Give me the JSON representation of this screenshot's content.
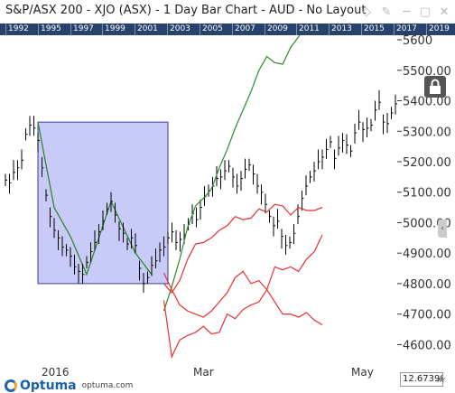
{
  "window": {
    "title": "S&P/ASX 200 - XJO (ASX) - 1 Day Bar Chart - AUD - No Layout",
    "icons": [
      "diamond-icon",
      "pin-icon",
      "minimize-icon",
      "maximize-icon",
      "close-icon"
    ]
  },
  "timeline": {
    "years": [
      "1992",
      "1995",
      "1997",
      "1999",
      "2001",
      "2003",
      "2005",
      "2007",
      "2009",
      "2011",
      "2013",
      "2015",
      "2017",
      "2019"
    ]
  },
  "y_axis": {
    "labels": [
      "5600",
      "5500.00",
      "5400.00",
      "5300.00",
      "5200.00",
      "5100.00",
      "5000.00",
      "4900.00",
      "4800.00",
      "4700.00",
      "4600.00"
    ]
  },
  "x_axis": {
    "labels": [
      "2016",
      "Mar",
      "May"
    ]
  },
  "footer": {
    "brand": "Optuma",
    "url": "optuma.com",
    "readout": "12.673980",
    "xy_label": "XY"
  },
  "chart_data": {
    "type": "bar",
    "ylim": [
      4530,
      5615
    ],
    "x": "trading days, Jan to May 2016",
    "colors": {
      "bars": "#000000",
      "projection_up": "#2e8b2e",
      "projection_down": "#e83030",
      "box_fill": "#c8caf7",
      "box_stroke": "#3a3aa0"
    },
    "ohlc_close": [
      5140,
      5130,
      5165,
      5180,
      5205,
      5290,
      5320,
      5310,
      5270,
      5180,
      5090,
      5020,
      4975,
      4950,
      4920,
      4910,
      4890,
      4855,
      4840,
      4830,
      4870,
      4905,
      4935,
      4970,
      5005,
      5045,
      5070,
      5025,
      4980,
      4965,
      4930,
      4950,
      4925,
      4850,
      4800,
      4820,
      4860,
      4875,
      4910,
      4920,
      4950,
      4970,
      4935,
      4945,
      4960,
      4995,
      5030,
      5010,
      5050,
      5085,
      5105,
      5120,
      5145,
      5150,
      5170,
      5185,
      5150,
      5120,
      5145,
      5175,
      5190,
      5160,
      5120,
      5100,
      5060,
      5020,
      4990,
      5005,
      4955,
      4925,
      4935,
      4965,
      5020,
      5080,
      5120,
      5150,
      5170,
      5200,
      5215,
      5240,
      5265,
      5210,
      5245,
      5270,
      5255,
      5235,
      5295,
      5330,
      5305,
      5310,
      5320,
      5370,
      5395,
      5330,
      5325,
      5360,
      5390
    ],
    "ohlc_range": 40,
    "box": {
      "x_range": [
        8,
        40
      ],
      "y_range": [
        4800,
        5330
      ]
    },
    "projection_up": [
      4710,
      4790,
      4880,
      4985,
      5055,
      5080,
      5110,
      5180,
      5240,
      5310,
      5370,
      5430,
      5500,
      5545,
      5525,
      5520,
      5575,
      5610,
      5650,
      5695,
      5745
    ],
    "projection_mid": [
      4800,
      4770,
      4810,
      4880,
      4930,
      4935,
      4950,
      4975,
      4990,
      5020,
      5010,
      5015,
      5045,
      5035,
      5060,
      5055,
      5025,
      5050,
      5040,
      5040,
      5050
    ],
    "projection_low1": [
      4835,
      4780,
      4730,
      4710,
      4700,
      4690,
      4710,
      4740,
      4770,
      4820,
      4840,
      4800,
      4810,
      4780,
      4740,
      4700,
      4700,
      4690,
      4705,
      4680,
      4665
    ],
    "projection_low2": [
      4745,
      4560,
      4615,
      4630,
      4640,
      4660,
      4635,
      4640,
      4700,
      4685,
      4715,
      4730,
      4740,
      4780,
      4855,
      4845,
      4855,
      4840,
      4880,
      4905,
      4960
    ]
  }
}
